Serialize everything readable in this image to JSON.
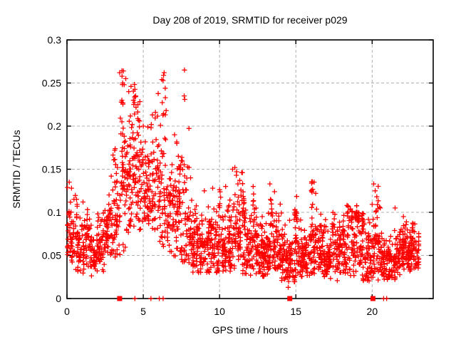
{
  "chart_data": {
    "type": "scatter",
    "title": "Day 208 of 2019, SRMTID for receiver p029",
    "xlabel": "GPS time / hours",
    "ylabel": "SRMTID / TECUs",
    "xlim": [
      0,
      24
    ],
    "ylim": [
      0,
      0.3
    ],
    "x_ticks": [
      0,
      5,
      10,
      15,
      20
    ],
    "x_tick_labels": [
      "0",
      "5",
      "10",
      "15",
      "20"
    ],
    "y_ticks": [
      0,
      0.05,
      0.1,
      0.15,
      0.2,
      0.25,
      0.3
    ],
    "y_tick_labels": [
      "0",
      "0.05",
      "0.1",
      "0.15",
      "0.2",
      "0.25",
      "0.3"
    ],
    "grid": true,
    "legend": "none",
    "marker": {
      "shape": "plus",
      "size": 7,
      "color": "#ff0000"
    },
    "x_data_start": 0.0,
    "x_data_end": 23.05,
    "density_profile": {
      "note": "dense scatter of ~2300 GPS ionospheric SRMTID samples; per 0.5h bin: [count, y_min, y_typical, y_max] read from the plot envelope",
      "bin_width": 0.5,
      "bin_start": 0,
      "bins": [
        [
          48,
          0.04,
          0.08,
          0.14
        ],
        [
          46,
          0.03,
          0.07,
          0.12
        ],
        [
          46,
          0.028,
          0.062,
          0.105
        ],
        [
          48,
          0.022,
          0.055,
          0.095
        ],
        [
          48,
          0.03,
          0.065,
          0.11
        ],
        [
          50,
          0.035,
          0.075,
          0.125
        ],
        [
          52,
          0.045,
          0.095,
          0.185
        ],
        [
          58,
          0.055,
          0.135,
          0.265
        ],
        [
          60,
          0.075,
          0.15,
          0.25
        ],
        [
          56,
          0.075,
          0.14,
          0.235
        ],
        [
          52,
          0.08,
          0.13,
          0.205
        ],
        [
          52,
          0.08,
          0.14,
          0.245
        ],
        [
          50,
          0.06,
          0.12,
          0.255
        ],
        [
          48,
          0.05,
          0.1,
          0.18
        ],
        [
          50,
          0.045,
          0.1,
          0.2
        ],
        [
          48,
          0.04,
          0.09,
          0.24
        ],
        [
          50,
          0.03,
          0.07,
          0.14
        ],
        [
          52,
          0.03,
          0.065,
          0.125
        ],
        [
          52,
          0.03,
          0.065,
          0.13
        ],
        [
          52,
          0.03,
          0.06,
          0.12
        ],
        [
          52,
          0.03,
          0.065,
          0.13
        ],
        [
          56,
          0.03,
          0.07,
          0.15
        ],
        [
          58,
          0.03,
          0.075,
          0.155
        ],
        [
          52,
          0.028,
          0.06,
          0.12
        ],
        [
          56,
          0.025,
          0.06,
          0.135
        ],
        [
          56,
          0.025,
          0.055,
          0.11
        ],
        [
          56,
          0.025,
          0.055,
          0.12
        ],
        [
          56,
          0.025,
          0.06,
          0.13
        ],
        [
          56,
          0.02,
          0.05,
          0.1
        ],
        [
          56,
          0.015,
          0.05,
          0.11
        ],
        [
          56,
          0.025,
          0.055,
          0.12
        ],
        [
          52,
          0.025,
          0.055,
          0.11
        ],
        [
          52,
          0.028,
          0.06,
          0.138
        ],
        [
          52,
          0.025,
          0.055,
          0.12
        ],
        [
          52,
          0.022,
          0.05,
          0.1
        ],
        [
          52,
          0.02,
          0.05,
          0.1
        ],
        [
          52,
          0.025,
          0.055,
          0.11
        ],
        [
          52,
          0.025,
          0.055,
          0.11
        ],
        [
          52,
          0.02,
          0.05,
          0.1
        ],
        [
          52,
          0.02,
          0.05,
          0.12
        ],
        [
          56,
          0.02,
          0.055,
          0.135
        ],
        [
          52,
          0.02,
          0.05,
          0.1
        ],
        [
          52,
          0.02,
          0.05,
          0.105
        ],
        [
          52,
          0.025,
          0.055,
          0.105
        ],
        [
          56,
          0.03,
          0.06,
          0.1
        ],
        [
          58,
          0.03,
          0.055,
          0.095
        ],
        [
          12,
          0.035,
          0.055,
          0.08
        ],
        [
          0,
          0,
          0,
          0
        ]
      ]
    },
    "peak_points": [
      [
        0.15,
        0.135
      ],
      [
        0.3,
        0.128
      ],
      [
        1.05,
        0.112
      ],
      [
        2.9,
        0.142
      ],
      [
        3.3,
        0.152
      ],
      [
        3.45,
        0.262
      ],
      [
        3.6,
        0.205
      ],
      [
        3.65,
        0.25
      ],
      [
        3.7,
        0.264
      ],
      [
        3.75,
        0.248
      ],
      [
        3.85,
        0.255
      ],
      [
        4.05,
        0.24
      ],
      [
        4.2,
        0.246
      ],
      [
        4.35,
        0.23
      ],
      [
        4.5,
        0.235
      ],
      [
        4.65,
        0.225
      ],
      [
        5.0,
        0.2
      ],
      [
        5.3,
        0.199
      ],
      [
        5.6,
        0.213
      ],
      [
        5.8,
        0.216
      ],
      [
        6.33,
        0.259
      ],
      [
        6.37,
        0.262
      ],
      [
        6.44,
        0.244
      ],
      [
        6.45,
        0.233
      ],
      [
        6.5,
        0.218
      ],
      [
        7.05,
        0.19
      ],
      [
        7.2,
        0.18
      ],
      [
        7.3,
        0.165
      ],
      [
        7.5,
        0.16
      ],
      [
        7.68,
        0.235
      ],
      [
        7.7,
        0.265
      ],
      [
        7.72,
        0.231
      ],
      [
        8.0,
        0.152
      ],
      [
        8.1,
        0.14
      ],
      [
        9.0,
        0.125
      ],
      [
        9.55,
        0.128
      ],
      [
        10.4,
        0.13
      ],
      [
        10.85,
        0.15
      ],
      [
        11.0,
        0.152
      ],
      [
        11.1,
        0.143
      ],
      [
        11.2,
        0.133
      ],
      [
        12.2,
        0.13
      ],
      [
        13.3,
        0.133
      ],
      [
        13.6,
        0.124
      ],
      [
        14.5,
        0.013
      ],
      [
        16.2,
        0.135
      ],
      [
        16.3,
        0.122
      ],
      [
        18.35,
        0.108
      ],
      [
        19.05,
        0.1
      ],
      [
        20.1,
        0.133
      ],
      [
        20.2,
        0.125
      ],
      [
        20.3,
        0.118
      ],
      [
        21.5,
        0.105
      ],
      [
        22.05,
        0.095
      ]
    ],
    "zero_markers": {
      "squares_at_hours": [
        3.45,
        14.6,
        20.05
      ],
      "plusses_at_hours": [
        4.45,
        5.5,
        6.05,
        6.3,
        20.75,
        20.95
      ]
    }
  },
  "colors": {
    "points": "#ff0000",
    "grid": "#b0b0b0",
    "axis": "#000000",
    "text": "#000000",
    "background": "#ffffff"
  }
}
